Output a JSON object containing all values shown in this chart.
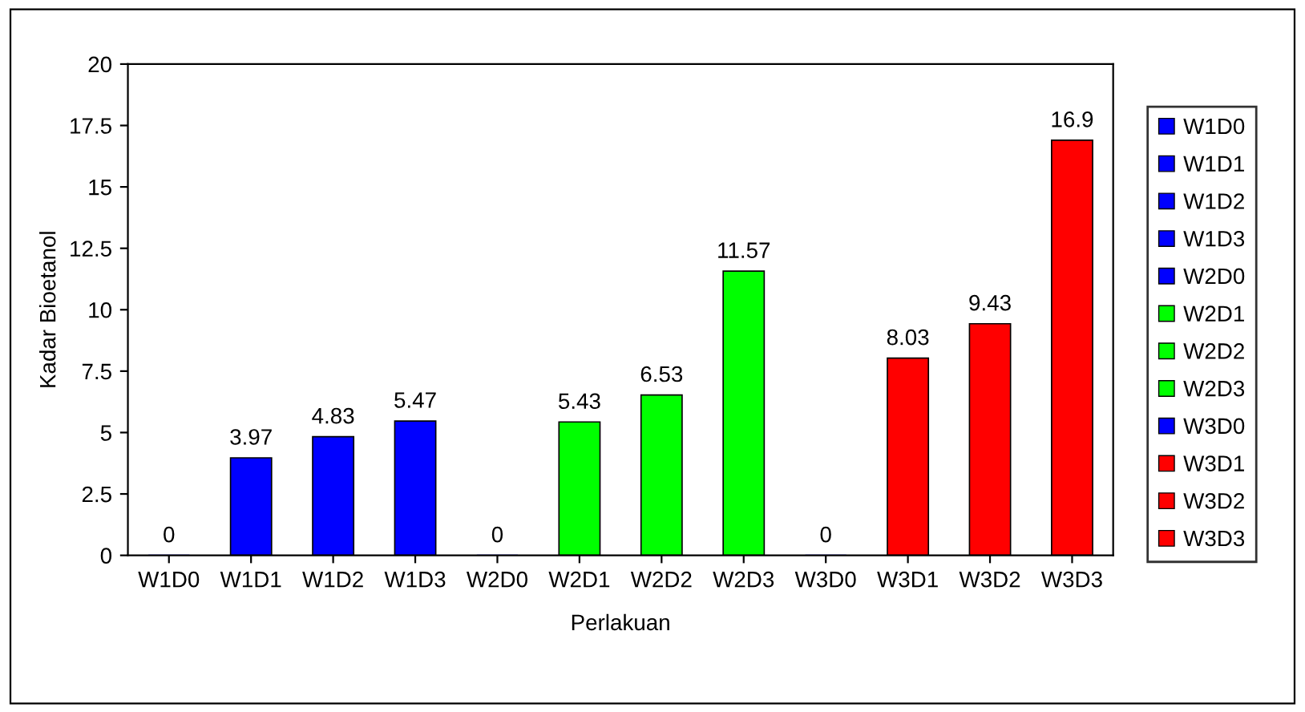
{
  "chart_data": {
    "type": "bar",
    "xlabel": "Perlakuan",
    "ylabel": "Kadar Bioetanol",
    "stacked": true,
    "categories": [
      "W1D0",
      "W1D1",
      "W1D2",
      "W1D3",
      "W2D0",
      "W2D1",
      "W2D2",
      "W2D3",
      "W3D0",
      "W3D1",
      "W3D2",
      "W3D3"
    ],
    "series": [
      {
        "name": "W1D0",
        "color": "#0000ff",
        "values": [
          0,
          null,
          null,
          null,
          null,
          null,
          null,
          null,
          null,
          null,
          null,
          null
        ]
      },
      {
        "name": "W1D1",
        "color": "#0000ff",
        "values": [
          null,
          3.97,
          null,
          null,
          null,
          null,
          null,
          null,
          null,
          null,
          null,
          null
        ]
      },
      {
        "name": "W1D2",
        "color": "#0000ff",
        "values": [
          null,
          null,
          4.83,
          null,
          null,
          null,
          null,
          null,
          null,
          null,
          null,
          null
        ]
      },
      {
        "name": "W1D3",
        "color": "#0000ff",
        "values": [
          null,
          null,
          null,
          5.47,
          null,
          null,
          null,
          null,
          null,
          null,
          null,
          null
        ]
      },
      {
        "name": "W2D0",
        "color": "#0000ff",
        "values": [
          null,
          null,
          null,
          null,
          0,
          null,
          null,
          null,
          null,
          null,
          null,
          null
        ]
      },
      {
        "name": "W2D1",
        "color": "#00ff00",
        "values": [
          null,
          null,
          null,
          null,
          null,
          5.43,
          null,
          null,
          null,
          null,
          null,
          null
        ]
      },
      {
        "name": "W2D2",
        "color": "#00ff00",
        "values": [
          null,
          null,
          null,
          null,
          null,
          null,
          6.53,
          null,
          null,
          null,
          null,
          null
        ]
      },
      {
        "name": "W2D3",
        "color": "#00ff00",
        "values": [
          null,
          null,
          null,
          null,
          null,
          null,
          null,
          11.57,
          null,
          null,
          null,
          null
        ]
      },
      {
        "name": "W3D0",
        "color": "#0000ff",
        "values": [
          null,
          null,
          null,
          null,
          null,
          null,
          null,
          null,
          0,
          null,
          null,
          null
        ]
      },
      {
        "name": "W3D1",
        "color": "#ff0000",
        "values": [
          null,
          null,
          null,
          null,
          null,
          null,
          null,
          null,
          null,
          8.03,
          null,
          null
        ]
      },
      {
        "name": "W3D2",
        "color": "#ff0000",
        "values": [
          null,
          null,
          null,
          null,
          null,
          null,
          null,
          null,
          null,
          null,
          9.43,
          null
        ]
      },
      {
        "name": "W3D3",
        "color": "#ff0000",
        "values": [
          null,
          null,
          null,
          null,
          null,
          null,
          null,
          null,
          null,
          null,
          null,
          16.9
        ]
      }
    ],
    "ylim": [
      0,
      20
    ],
    "yticks": [
      0,
      2.5,
      5,
      7.5,
      10,
      12.5,
      15,
      17.5,
      20
    ],
    "data_labels": true,
    "grid": false,
    "legend": "right"
  }
}
